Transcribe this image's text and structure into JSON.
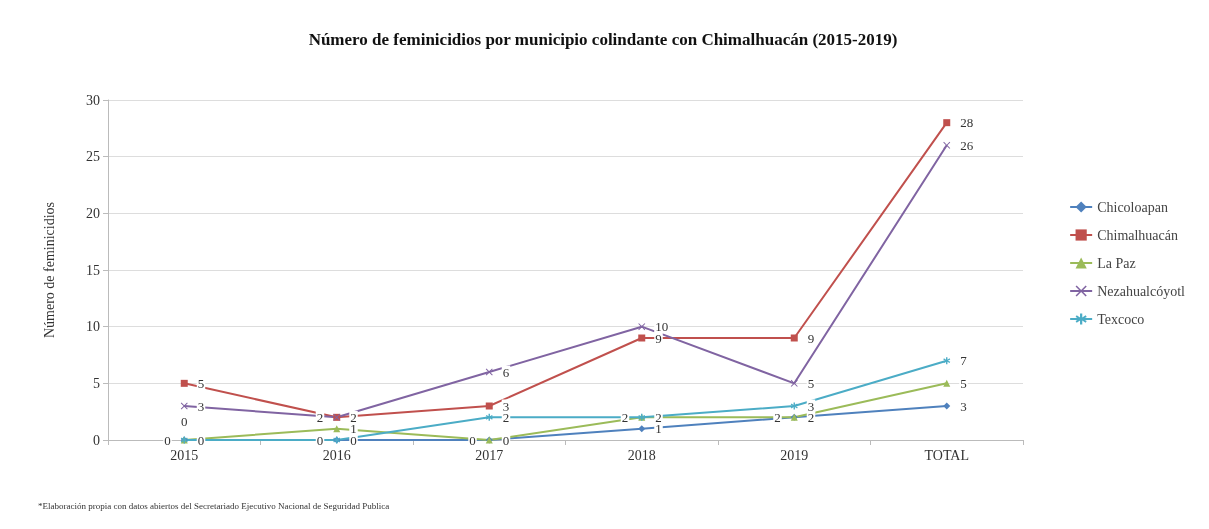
{
  "chart_data": {
    "type": "line",
    "title": "Número de feminicidios por municipio colindante con Chimalhuacán (2015-2019)",
    "ylabel": "Número de feminicidios",
    "categories": [
      "2015",
      "2016",
      "2017",
      "2018",
      "2019",
      "TOTAL"
    ],
    "series": [
      {
        "name": "Chicoloapan",
        "color": "#4f81bd",
        "marker": "diamond",
        "values": [
          0,
          0,
          0,
          1,
          2,
          3
        ]
      },
      {
        "name": "Chimalhuacán",
        "color": "#c0504d",
        "marker": "square",
        "values": [
          5,
          2,
          3,
          9,
          9,
          28
        ]
      },
      {
        "name": "La Paz",
        "color": "#9bbb59",
        "marker": "triangle",
        "values": [
          0,
          1,
          0,
          2,
          2,
          5
        ]
      },
      {
        "name": "Nezahualcóyotl",
        "color": "#8064a2",
        "marker": "cross",
        "values": [
          3,
          2,
          6,
          10,
          5,
          26
        ]
      },
      {
        "name": "Texcoco",
        "color": "#4bacc6",
        "marker": "star",
        "values": [
          0,
          0,
          2,
          2,
          3,
          7
        ]
      }
    ],
    "ylim": [
      0,
      30
    ],
    "yticks": [
      0,
      5,
      10,
      15,
      20,
      25,
      30
    ],
    "grid": "y",
    "legend": "right",
    "data_labels": true,
    "annotations": [
      "*Elaboración propia con datos abiertos del Secretariado Ejecutivo Nacional de Seguridad Publica"
    ]
  }
}
